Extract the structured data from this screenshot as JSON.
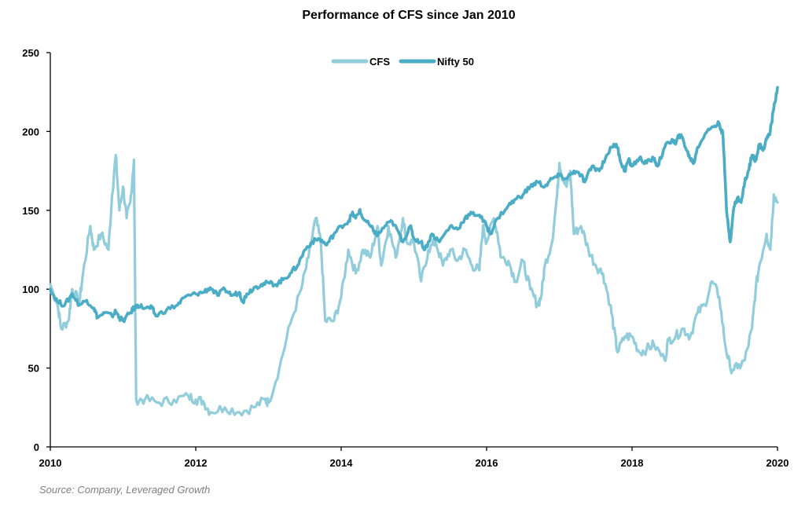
{
  "chart_data": {
    "type": "line",
    "title": "Performance of CFS since Jan 2010",
    "xlabel": "",
    "ylabel": "",
    "xlim": [
      2010,
      2020
    ],
    "ylim": [
      0,
      250
    ],
    "x_ticks": [
      "2010",
      "2012",
      "2014",
      "2016",
      "2018",
      "2020"
    ],
    "y_ticks": [
      "0",
      "50",
      "100",
      "150",
      "200",
      "250"
    ],
    "legend_position": "top-center",
    "grid": false,
    "series": [
      {
        "name": "CFS",
        "color": "#92cddc",
        "points": [
          [
            2010.0,
            103
          ],
          [
            2010.1,
            90
          ],
          [
            2010.15,
            75
          ],
          [
            2010.25,
            80
          ],
          [
            2010.3,
            100
          ],
          [
            2010.4,
            92
          ],
          [
            2010.45,
            110
          ],
          [
            2010.55,
            140
          ],
          [
            2010.6,
            125
          ],
          [
            2010.7,
            135
          ],
          [
            2010.8,
            125
          ],
          [
            2010.85,
            160
          ],
          [
            2010.9,
            185
          ],
          [
            2010.95,
            150
          ],
          [
            2011.0,
            165
          ],
          [
            2011.05,
            145
          ],
          [
            2011.1,
            155
          ],
          [
            2011.15,
            182
          ],
          [
            2011.18,
            30
          ],
          [
            2011.3,
            30
          ],
          [
            2011.5,
            28
          ],
          [
            2011.7,
            30
          ],
          [
            2011.9,
            32
          ],
          [
            2012.0,
            30
          ],
          [
            2012.1,
            29
          ],
          [
            2012.2,
            22
          ],
          [
            2012.4,
            25
          ],
          [
            2012.6,
            22
          ],
          [
            2012.8,
            25
          ],
          [
            2012.95,
            30
          ],
          [
            2013.0,
            28
          ],
          [
            2013.15,
            50
          ],
          [
            2013.3,
            78
          ],
          [
            2013.45,
            100
          ],
          [
            2013.55,
            120
          ],
          [
            2013.65,
            145
          ],
          [
            2013.72,
            130
          ],
          [
            2013.78,
            80
          ],
          [
            2013.9,
            80
          ],
          [
            2014.0,
            95
          ],
          [
            2014.1,
            125
          ],
          [
            2014.2,
            110
          ],
          [
            2014.3,
            125
          ],
          [
            2014.4,
            120
          ],
          [
            2014.5,
            140
          ],
          [
            2014.55,
            115
          ],
          [
            2014.65,
            140
          ],
          [
            2014.75,
            120
          ],
          [
            2014.85,
            145
          ],
          [
            2014.9,
            130
          ],
          [
            2015.0,
            130
          ],
          [
            2015.1,
            105
          ],
          [
            2015.2,
            125
          ],
          [
            2015.3,
            130
          ],
          [
            2015.4,
            115
          ],
          [
            2015.5,
            125
          ],
          [
            2015.6,
            118
          ],
          [
            2015.7,
            125
          ],
          [
            2015.8,
            115
          ],
          [
            2015.9,
            112
          ],
          [
            2015.95,
            140
          ],
          [
            2016.0,
            130
          ],
          [
            2016.1,
            145
          ],
          [
            2016.15,
            135
          ],
          [
            2016.2,
            120
          ],
          [
            2016.3,
            118
          ],
          [
            2016.4,
            105
          ],
          [
            2016.5,
            118
          ],
          [
            2016.6,
            100
          ],
          [
            2016.7,
            90
          ],
          [
            2016.75,
            95
          ],
          [
            2016.8,
            115
          ],
          [
            2016.9,
            130
          ],
          [
            2016.97,
            160
          ],
          [
            2017.0,
            180
          ],
          [
            2017.05,
            170
          ],
          [
            2017.1,
            165
          ],
          [
            2017.15,
            175
          ],
          [
            2017.2,
            135
          ],
          [
            2017.3,
            140
          ],
          [
            2017.4,
            125
          ],
          [
            2017.5,
            115
          ],
          [
            2017.6,
            110
          ],
          [
            2017.7,
            90
          ],
          [
            2017.75,
            75
          ],
          [
            2017.8,
            60
          ],
          [
            2017.9,
            70
          ],
          [
            2018.0,
            70
          ],
          [
            2018.1,
            60
          ],
          [
            2018.2,
            62
          ],
          [
            2018.3,
            65
          ],
          [
            2018.45,
            55
          ],
          [
            2018.5,
            68
          ],
          [
            2018.6,
            70
          ],
          [
            2018.7,
            75
          ],
          [
            2018.8,
            70
          ],
          [
            2018.9,
            85
          ],
          [
            2019.0,
            90
          ],
          [
            2019.1,
            105
          ],
          [
            2019.2,
            95
          ],
          [
            2019.28,
            65
          ],
          [
            2019.35,
            50
          ],
          [
            2019.45,
            50
          ],
          [
            2019.55,
            55
          ],
          [
            2019.65,
            75
          ],
          [
            2019.7,
            100
          ],
          [
            2019.75,
            115
          ],
          [
            2019.85,
            135
          ],
          [
            2019.9,
            125
          ],
          [
            2019.95,
            160
          ],
          [
            2020.0,
            155
          ]
        ]
      },
      {
        "name": "Nifty 50",
        "color": "#4bacc6",
        "points": [
          [
            2010.0,
            100
          ],
          [
            2010.1,
            92
          ],
          [
            2010.2,
            90
          ],
          [
            2010.3,
            97
          ],
          [
            2010.4,
            90
          ],
          [
            2010.5,
            93
          ],
          [
            2010.6,
            88
          ],
          [
            2010.65,
            82
          ],
          [
            2010.75,
            85
          ],
          [
            2010.85,
            83
          ],
          [
            2010.9,
            86
          ],
          [
            2010.95,
            82
          ],
          [
            2011.0,
            80
          ],
          [
            2011.1,
            85
          ],
          [
            2011.15,
            88
          ],
          [
            2011.2,
            90
          ],
          [
            2011.3,
            88
          ],
          [
            2011.4,
            88
          ],
          [
            2011.45,
            83
          ],
          [
            2011.6,
            87
          ],
          [
            2011.75,
            90
          ],
          [
            2011.85,
            95
          ],
          [
            2012.0,
            97
          ],
          [
            2012.1,
            98
          ],
          [
            2012.2,
            101
          ],
          [
            2012.3,
            96
          ],
          [
            2012.4,
            100
          ],
          [
            2012.5,
            96
          ],
          [
            2012.6,
            98
          ],
          [
            2012.65,
            92
          ],
          [
            2012.7,
            97
          ],
          [
            2012.8,
            101
          ],
          [
            2012.9,
            103
          ],
          [
            2013.0,
            104
          ],
          [
            2013.1,
            103
          ],
          [
            2013.2,
            106
          ],
          [
            2013.3,
            110
          ],
          [
            2013.4,
            115
          ],
          [
            2013.5,
            125
          ],
          [
            2013.6,
            130
          ],
          [
            2013.7,
            132
          ],
          [
            2013.8,
            128
          ],
          [
            2013.9,
            135
          ],
          [
            2014.0,
            140
          ],
          [
            2014.1,
            143
          ],
          [
            2014.15,
            148
          ],
          [
            2014.2,
            145
          ],
          [
            2014.25,
            150
          ],
          [
            2014.3,
            145
          ],
          [
            2014.4,
            140
          ],
          [
            2014.45,
            137
          ],
          [
            2014.5,
            134
          ],
          [
            2014.6,
            140
          ],
          [
            2014.7,
            143
          ],
          [
            2014.8,
            135
          ],
          [
            2014.85,
            130
          ],
          [
            2014.95,
            140
          ],
          [
            2015.0,
            132
          ],
          [
            2015.1,
            130
          ],
          [
            2015.15,
            125
          ],
          [
            2015.25,
            135
          ],
          [
            2015.35,
            130
          ],
          [
            2015.5,
            140
          ],
          [
            2015.6,
            138
          ],
          [
            2015.7,
            145
          ],
          [
            2015.8,
            148
          ],
          [
            2015.9,
            147
          ],
          [
            2016.0,
            140
          ],
          [
            2016.05,
            135
          ],
          [
            2016.15,
            145
          ],
          [
            2016.3,
            153
          ],
          [
            2016.4,
            157
          ],
          [
            2016.5,
            160
          ],
          [
            2016.6,
            165
          ],
          [
            2016.7,
            168
          ],
          [
            2016.8,
            165
          ],
          [
            2016.9,
            170
          ],
          [
            2017.0,
            172
          ],
          [
            2017.1,
            170
          ],
          [
            2017.2,
            175
          ],
          [
            2017.3,
            172
          ],
          [
            2017.35,
            168
          ],
          [
            2017.45,
            178
          ],
          [
            2017.55,
            175
          ],
          [
            2017.65,
            185
          ],
          [
            2017.75,
            192
          ],
          [
            2017.8,
            190
          ],
          [
            2017.85,
            180
          ],
          [
            2017.9,
            175
          ],
          [
            2017.95,
            182
          ],
          [
            2018.0,
            178
          ],
          [
            2018.1,
            183
          ],
          [
            2018.2,
            180
          ],
          [
            2018.3,
            183
          ],
          [
            2018.35,
            178
          ],
          [
            2018.45,
            190
          ],
          [
            2018.55,
            195
          ],
          [
            2018.6,
            192
          ],
          [
            2018.65,
            198
          ],
          [
            2018.7,
            195
          ],
          [
            2018.75,
            188
          ],
          [
            2018.8,
            183
          ],
          [
            2018.85,
            180
          ],
          [
            2018.9,
            190
          ],
          [
            2019.0,
            198
          ],
          [
            2019.1,
            203
          ],
          [
            2019.2,
            205
          ],
          [
            2019.25,
            198
          ],
          [
            2019.3,
            150
          ],
          [
            2019.35,
            130
          ],
          [
            2019.4,
            152
          ],
          [
            2019.45,
            158
          ],
          [
            2019.5,
            155
          ],
          [
            2019.55,
            168
          ],
          [
            2019.6,
            175
          ],
          [
            2019.65,
            185
          ],
          [
            2019.7,
            182
          ],
          [
            2019.75,
            192
          ],
          [
            2019.8,
            188
          ],
          [
            2019.85,
            195
          ],
          [
            2019.9,
            200
          ],
          [
            2019.95,
            215
          ],
          [
            2020.0,
            228
          ]
        ]
      }
    ]
  },
  "source": "Source: Company, Leveraged Growth"
}
